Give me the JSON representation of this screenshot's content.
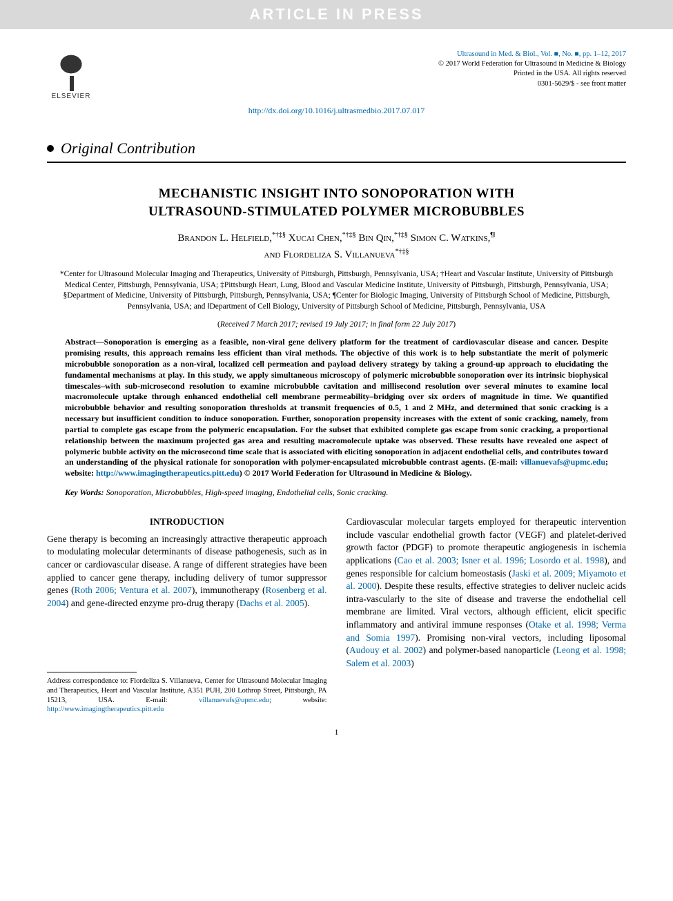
{
  "banner": "ARTICLE IN PRESS",
  "publisher": {
    "logo_label": "ELSEVIER"
  },
  "journal_meta": {
    "line1": "Ultrasound in Med. & Biol., Vol. ■, No. ■, pp. 1–12, 2017",
    "line2": "© 2017 World Federation for Ultrasound in Medicine & Biology",
    "line3": "Printed in the USA. All rights reserved",
    "line4": "0301-5629/$ - see front matter"
  },
  "doi_url": "http://dx.doi.org/10.1016/j.ultrasmedbio.2017.07.017",
  "section_type": "Original Contribution",
  "title_line1": "MECHANISTIC INSIGHT INTO SONOPORATION WITH",
  "title_line2": "ULTRASOUND-STIMULATED POLYMER MICROBUBBLES",
  "authors": [
    {
      "name": "Brandon L. Helfield,",
      "aff": "*†‡§"
    },
    {
      "name": "Xucai Chen,",
      "aff": "*†‡§"
    },
    {
      "name": "Bin Qin,",
      "aff": "*†‡§"
    },
    {
      "name": "Simon C. Watkins,",
      "aff": "¶‖"
    },
    {
      "name": "and Flordeliza S. Villanueva",
      "aff": "*†‡§"
    }
  ],
  "affiliations": "*Center for Ultrasound Molecular Imaging and Therapeutics, University of Pittsburgh, Pittsburgh, Pennsylvania, USA; †Heart and Vascular Institute, University of Pittsburgh Medical Center, Pittsburgh, Pennsylvania, USA; ‡Pittsburgh Heart, Lung, Blood and Vascular Medicine Institute, University of Pittsburgh, Pittsburgh, Pennsylvania, USA; §Department of Medicine, University of Pittsburgh, Pittsburgh, Pennsylvania, USA; ¶Center for Biologic Imaging, University of Pittsburgh School of Medicine, Pittsburgh, Pennsylvania, USA; and ‖Department of Cell Biology, University of Pittsburgh School of Medicine, Pittsburgh, Pennsylvania, USA",
  "dates": {
    "received": "Received 7 March 2017;",
    "revised": "revised 19 July 2017;",
    "final": "in final form 22 July 2017"
  },
  "abstract_label": "Abstract—",
  "abstract_body": "Sonoporation is emerging as a feasible, non-viral gene delivery platform for the treatment of cardiovascular disease and cancer. Despite promising results, this approach remains less efficient than viral methods. The objective of this work is to help substantiate the merit of polymeric microbubble sonoporation as a non-viral, localized cell permeation and payload delivery strategy by taking a ground-up approach to elucidating the fundamental mechanisms at play. In this study, we apply simultaneous microscopy of polymeric microbubble sonoporation over its intrinsic biophysical timescales–with sub-microsecond resolution to examine microbubble cavitation and millisecond resolution over several minutes to examine local macromolecule uptake through enhanced endothelial cell membrane permeability–bridging over six orders of magnitude in time. We quantified microbubble behavior and resulting sonoporation thresholds at transmit frequencies of 0.5, 1 and 2 MHz, and determined that sonic cracking is a necessary but insufficient condition to induce sonoporation. Further, sonoporation propensity increases with the extent of sonic cracking, namely, from partial to complete gas escape from the polymeric encapsulation. For the subset that exhibited complete gas escape from sonic cracking, a proportional relationship between the maximum projected gas area and resulting macromolecule uptake was observed. These results have revealed one aspect of polymeric bubble activity on the microsecond time scale that is associated with eliciting sonoporation in adjacent endothelial cells, and contributes toward an understanding of the physical rationale for sonoporation with polymer-encapsulated microbubble contrast agents. (E-mail: ",
  "abstract_email": "villanuevafs@upmc.edu",
  "abstract_website_label": "; website: ",
  "abstract_website": "http://www.imagingtherapeutics.pitt.edu",
  "abstract_tail": ")   © 2017 World Federation for Ultrasound in Medicine & Biology.",
  "keywords_label": "Key Words:",
  "keywords": " Sonoporation, Microbubbles, High-speed imaging, Endothelial cells, Sonic cracking.",
  "intro_heading": "INTRODUCTION",
  "intro_col1_a": "Gene therapy is becoming an increasingly attractive therapeutic approach to modulating molecular determinants of disease pathogenesis, such as in cancer or cardiovascular disease. A range of different strategies have been applied to cancer gene therapy, including delivery of tumor suppressor genes (",
  "intro_ref1": "Roth 2006; Ventura et al. 2007",
  "intro_col1_b": "), immunotherapy (",
  "intro_ref2": "Rosenberg et al. 2004",
  "intro_col1_c": ") and gene-directed enzyme pro-drug therapy (",
  "intro_ref3": "Dachs et al. 2005",
  "intro_col1_d": ").",
  "intro_col2_a": "Cardiovascular molecular targets employed for therapeutic intervention include vascular endothelial growth factor (VEGF) and platelet-derived growth factor (PDGF) to promote therapeutic angiogenesis in ischemia applications (",
  "intro_ref4": "Cao et al. 2003; Isner et al. 1996; Losordo et al. 1998",
  "intro_col2_b": "), and genes responsible for calcium homeostasis (",
  "intro_ref5": "Jaski et al. 2009; Miyamoto et al. 2000",
  "intro_col2_c": "). Despite these results, effective strategies to deliver nucleic acids intra-vascularly to the site of disease and traverse the endothelial cell membrane are limited. Viral vectors, although efficient, elicit specific inflammatory and antiviral immune responses (",
  "intro_ref6": "Otake et al. 1998; Verma and Somia 1997",
  "intro_col2_d": "). Promising non-viral vectors, including liposomal (",
  "intro_ref7": "Audouy et al. 2002",
  "intro_col2_e": ") and polymer-based nanoparticle (",
  "intro_ref8": "Leong et al. 1998; Salem et al. 2003",
  "intro_col2_f": ")",
  "footnote_a": "Address correspondence to: Flordeliza S. Villanueva, Center for Ultrasound Molecular Imaging and Therapeutics, Heart and Vascular Institute, A351 PUH, 200 Lothrop Street, Pittsburgh, PA 15213, USA. E-mail: ",
  "footnote_email": "villanuevafs@upmc.edu",
  "footnote_b": "; website: ",
  "footnote_website": "http://www.imagingtherapeutics.pitt.edu",
  "page_number": "1",
  "colors": {
    "link": "#0066a6",
    "banner_bg": "#d9d9d9",
    "banner_fg": "#ffffff"
  }
}
